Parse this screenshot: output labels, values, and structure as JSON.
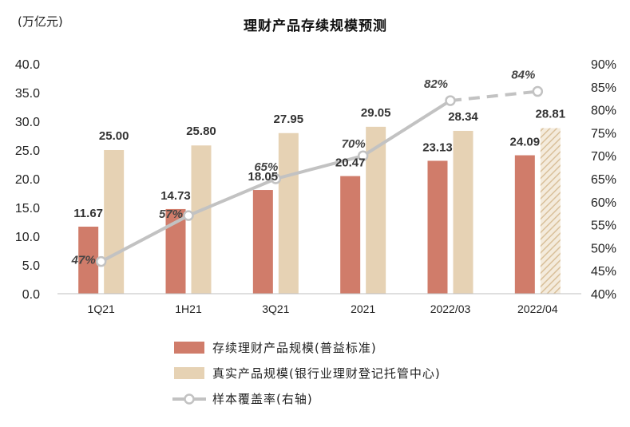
{
  "chart_data": {
    "type": "bar",
    "title": "理财产品存续规模预测",
    "ylabel": "(万亿元)",
    "categories": [
      "1Q21",
      "1H21",
      "3Q21",
      "2021",
      "2022/03",
      "2022/04"
    ],
    "ylim": [
      0,
      40
    ],
    "yticks": [
      "0.0",
      "5.0",
      "10.0",
      "15.0",
      "20.0",
      "25.0",
      "30.0",
      "35.0",
      "40.0"
    ],
    "y2lim": [
      40,
      90
    ],
    "y2ticks": [
      "40%",
      "45%",
      "50%",
      "55%",
      "60%",
      "65%",
      "70%",
      "75%",
      "80%",
      "85%",
      "90%"
    ],
    "series": [
      {
        "name": "存续理财产品规模(普益标准)",
        "type": "bar",
        "color": "#D07C6A",
        "values": [
          11.67,
          14.73,
          18.05,
          20.47,
          23.13,
          24.09
        ],
        "labels": [
          "11.67",
          "14.73",
          "18.05",
          "20.47",
          "23.13",
          "24.09"
        ]
      },
      {
        "name": "真实产品规模(银行业理财登记托管中心)",
        "type": "bar",
        "color": "#E6D2B4",
        "values": [
          25.0,
          25.8,
          27.95,
          29.05,
          28.34,
          28.81
        ],
        "labels": [
          "25.00",
          "25.80",
          "27.95",
          "29.05",
          "28.34",
          "28.81"
        ],
        "hatched_last": true
      },
      {
        "name": "样本覆盖率(右轴)",
        "type": "line",
        "axis": "right",
        "color": "#C2C2C2",
        "values": [
          47,
          57,
          65,
          70,
          82,
          84
        ],
        "labels": [
          "47%",
          "57%",
          "65%",
          "70%",
          "82%",
          "84%"
        ],
        "dashed_last_segment": true
      }
    ],
    "grid": false,
    "legend_position": "bottom"
  }
}
